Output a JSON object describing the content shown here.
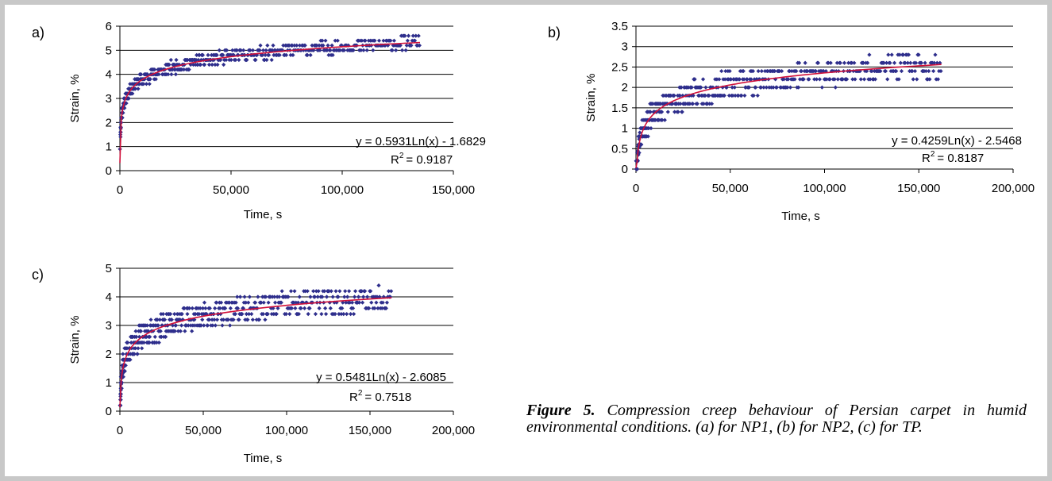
{
  "caption": {
    "figure_label": "Figure 5.",
    "text": "Compression creep behaviour of Persian carpet in humid environmental conditions. (a) for NP1, (b) for NP2, (c) for TP."
  },
  "colors": {
    "points": "#2e2e8c",
    "trend": "#d0103a",
    "grid": "#000000",
    "border": "#c8c8c8"
  },
  "chart_data": [
    {
      "panel_label": "a)",
      "type": "scatter",
      "xlabel": "Time, s",
      "ylabel": "Strain, %",
      "xlim": [
        0,
        150000
      ],
      "ylim": [
        0,
        6
      ],
      "x_ticks": [
        "0",
        "50,000",
        "100,000",
        "150,000"
      ],
      "y_ticks": [
        "0",
        "1",
        "2",
        "3",
        "4",
        "5",
        "6"
      ],
      "grid": "horizontal",
      "trendline": {
        "type": "log",
        "a": 0.5931,
        "b": -1.6829,
        "x_max": 135000
      },
      "equation": "y = 0.5931Ln(x) - 1.6829",
      "r2_value": "= 0.9187",
      "data_xmax": 135000,
      "scatter_spread": 0.25,
      "seed": 11
    },
    {
      "panel_label": "b)",
      "type": "scatter",
      "xlabel": "Time, s",
      "ylabel": "Strain, %",
      "xlim": [
        0,
        200000
      ],
      "ylim": [
        0,
        3.5
      ],
      "x_ticks": [
        "0",
        "50,000",
        "100,000",
        "150,000",
        "200,000"
      ],
      "y_ticks": [
        "0",
        "0.5",
        "1",
        "1.5",
        "2",
        "2.5",
        "3",
        "3.5"
      ],
      "grid": "horizontal",
      "trendline": {
        "type": "log",
        "a": 0.4259,
        "b": -2.5468,
        "x_max": 162000
      },
      "equation": "y = 0.4259Ln(x) - 2.5468",
      "r2_value": "= 0.8187",
      "data_xmax": 162000,
      "scatter_spread": 0.3,
      "seed": 23
    },
    {
      "panel_label": "c)",
      "type": "scatter",
      "xlabel": "Time, s",
      "ylabel": "Strain, %",
      "xlim": [
        0,
        200000
      ],
      "ylim": [
        0,
        5
      ],
      "x_ticks": [
        "0",
        "50,000",
        "100,000",
        "150,000",
        "200,000"
      ],
      "y_ticks": [
        "0",
        "1",
        "2",
        "3",
        "4",
        "5"
      ],
      "grid": "horizontal",
      "trendline": {
        "type": "log",
        "a": 0.5481,
        "b": -2.6085,
        "x_max": 163000
      },
      "equation": "y = 0.5481Ln(x) - 2.6085",
      "r2_value": "= 0.7518",
      "data_xmax": 163000,
      "scatter_spread": 0.45,
      "seed": 37
    }
  ]
}
